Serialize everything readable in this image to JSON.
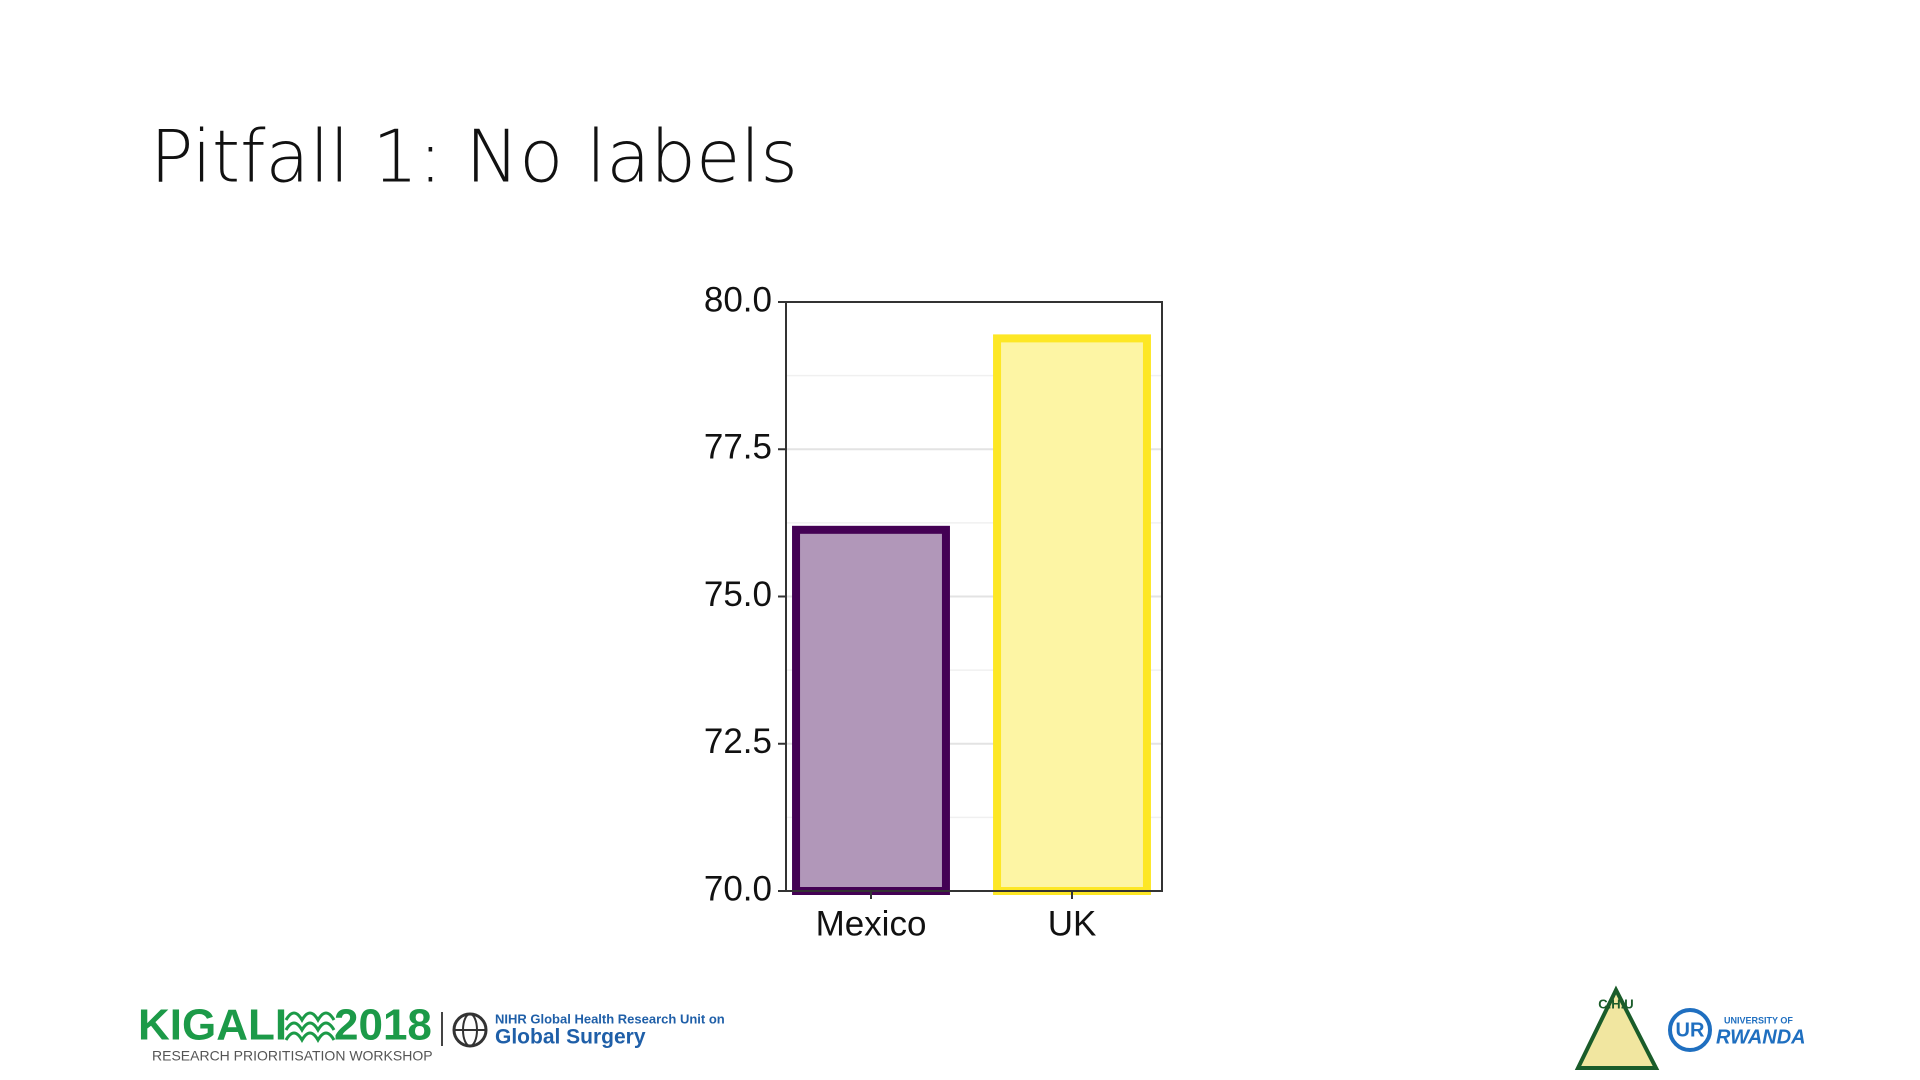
{
  "slide": {
    "title": "Pitfall 1: No labels"
  },
  "chart_data": {
    "type": "bar",
    "categories": [
      "Mexico",
      "UK"
    ],
    "values": [
      76.2,
      79.45
    ],
    "colors": [
      "#b197b9",
      "#fdf5a4"
    ],
    "edge_colors": [
      "#440154",
      "#fde725"
    ],
    "ylim": [
      70,
      80
    ],
    "yticks": [
      {
        "value": 70,
        "label": "70.0"
      },
      72.5,
      {
        "value": 75,
        "label": "75.0"
      },
      77.5,
      {
        "value": 80,
        "label": "80.0"
      }
    ],
    "grid": true
  },
  "footer": {
    "kigali": "KIGALI",
    "year": "2018",
    "workshop": "RESEARCH PRIORITISATION WORKSHOP",
    "nihr": "NIHR Global Health Research Unit on",
    "surgery": "Global Surgery",
    "chu": "C.H.U",
    "univ_of": "UNIVERSITY OF",
    "rwanda": "RWANDA"
  }
}
